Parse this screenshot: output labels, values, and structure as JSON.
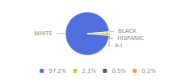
{
  "chart_data": {
    "type": "pie",
    "categories": [
      "WHITE",
      "A.I.",
      "HISPANIC",
      "BLACK"
    ],
    "values": [
      97.2,
      2.1,
      0.5,
      0.2
    ],
    "value_labels": [
      "97.2%",
      "2.1%",
      "0.5%",
      "0.2%"
    ],
    "legend": "bottom"
  }
}
